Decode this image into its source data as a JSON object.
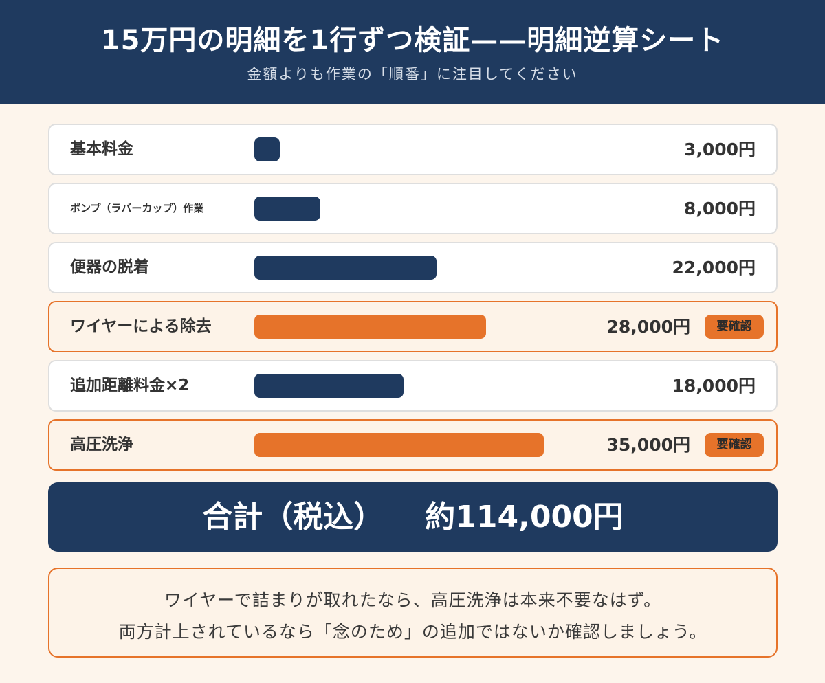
{
  "header": {
    "title": "15万円の明細を1行ずつ検証——明細逆算シート",
    "subtitle": "金額よりも作業の「順番」に注目してください"
  },
  "colors": {
    "navy": "#1f3a5f",
    "orange": "#e6732a",
    "background": "#fdf5ec"
  },
  "chart_data": {
    "type": "bar",
    "orientation": "horizontal",
    "categories": [
      "基本料金",
      "ポンプ（ラバーカップ）作業",
      "便器の脱着",
      "ワイヤーによる除去",
      "追加距離料金×2",
      "高圧洗浄"
    ],
    "values": [
      3000,
      8000,
      22000,
      28000,
      18000,
      35000
    ],
    "value_labels": [
      "3,000円",
      "8,000円",
      "22,000円",
      "28,000円",
      "18,000円",
      "35,000円"
    ],
    "flagged": [
      false,
      false,
      false,
      true,
      false,
      true
    ],
    "flag_label": "要確認",
    "xlim": [
      0,
      35000
    ],
    "grid": false
  },
  "total": {
    "label": "合計（税込）",
    "value": "約114,000円"
  },
  "note": {
    "line1": "ワイヤーで詰まりが取れたなら、高圧洗浄は本来不要なはず。",
    "line2": "両方計上されているなら「念のため」の追加ではないか確認しましょう。"
  }
}
